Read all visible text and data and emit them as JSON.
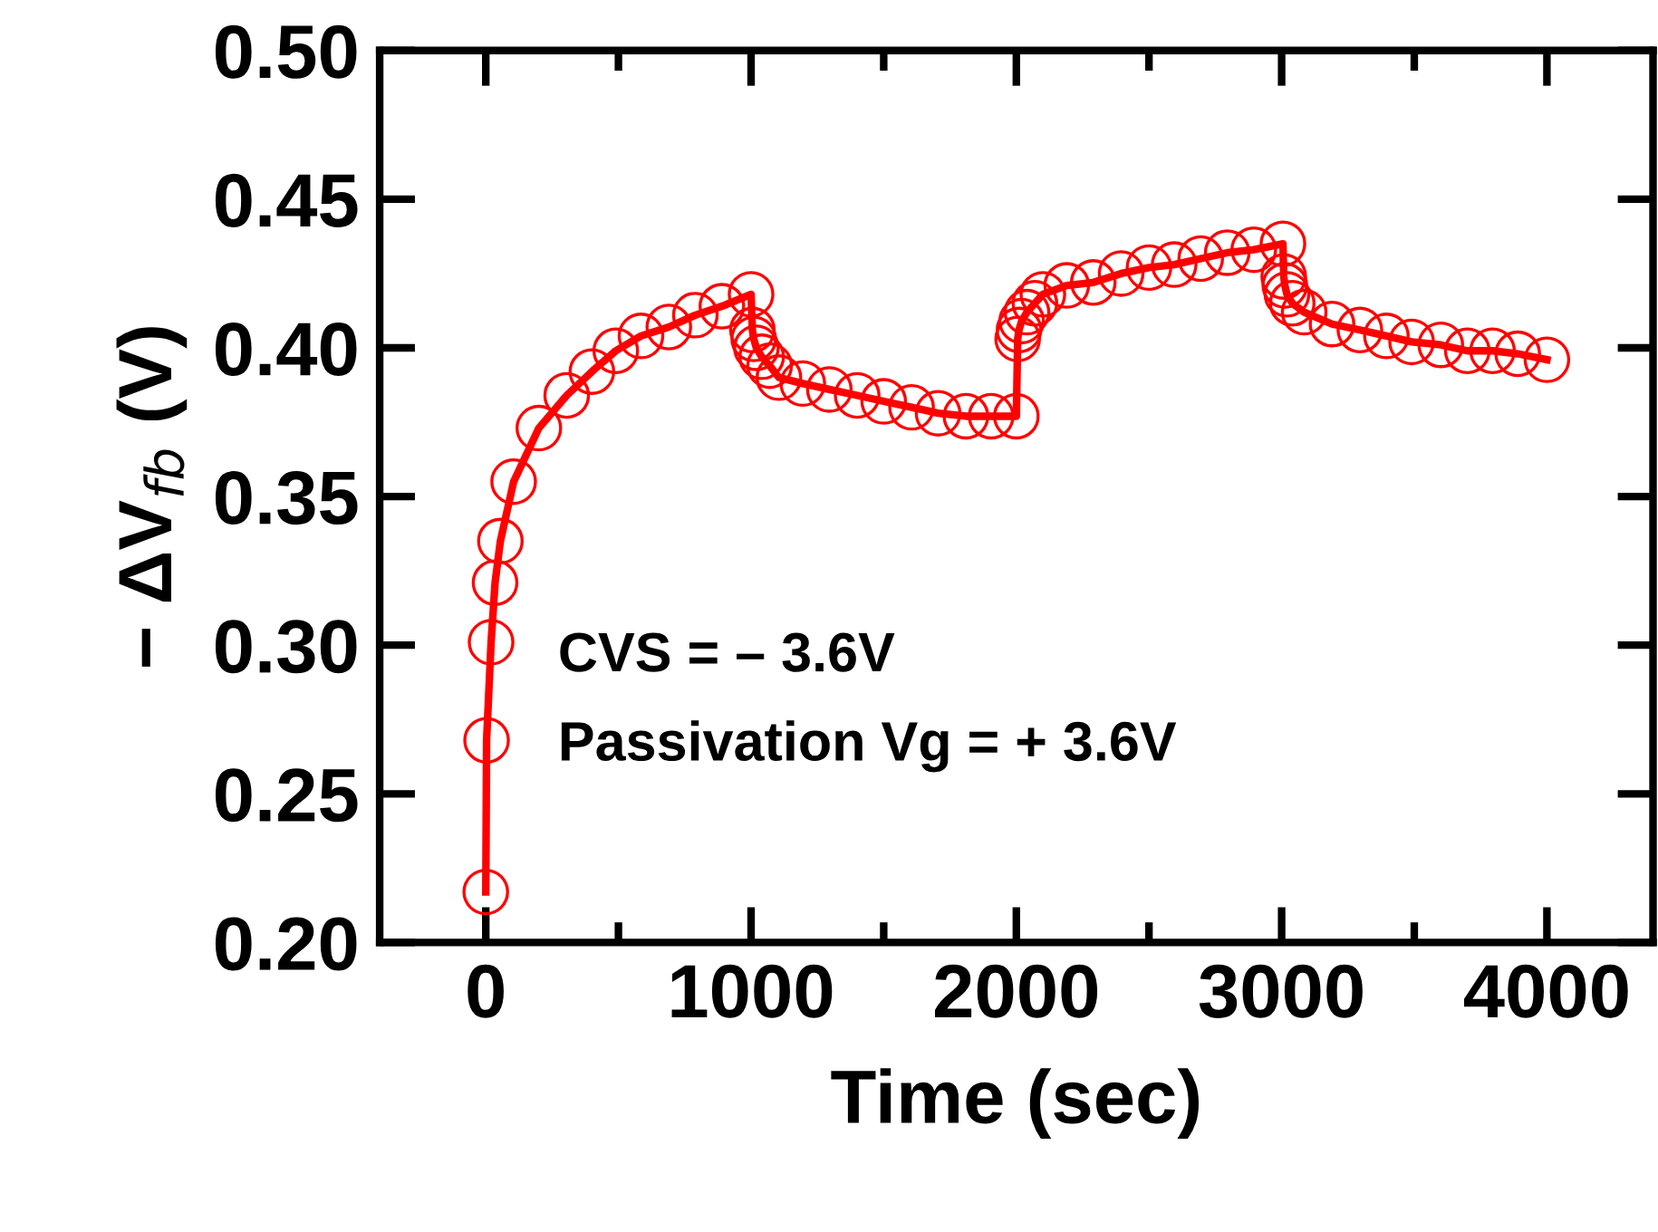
{
  "chart_data": {
    "type": "line",
    "xlabel": "Time (sec)",
    "ylabel": "− ΔV$_{fb}$ (V)",
    "xlim": [
      -400,
      4400
    ],
    "ylim": [
      0.2,
      0.5
    ],
    "xticks": [
      0,
      1000,
      2000,
      3000,
      4000
    ],
    "yticks": [
      {
        "value": 0.2,
        "label": "0.20"
      },
      {
        "value": 0.25,
        "label": "0.25"
      },
      {
        "value": 0.3,
        "label": "0.30"
      },
      {
        "value": 0.35,
        "label": "0.35"
      },
      {
        "value": 0.4,
        "label": "0.40"
      },
      {
        "value": 0.45,
        "label": "0.45"
      },
      {
        "value": 0.5,
        "label": "0.50"
      }
    ],
    "marker": "circle",
    "line_style": "solid",
    "grid": false,
    "legend": false,
    "annotations": [
      "CVS = – 3.6V",
      "Passivation Vg = + 3.6V"
    ],
    "series": [
      {
        "color": "#ff0000",
        "x": [
          0,
          3,
          20,
          35,
          55,
          105,
          200,
          305,
          400,
          490,
          585,
          690,
          790,
          890,
          1000,
          1005,
          1010,
          1020,
          1040,
          1070,
          1105,
          1195,
          1295,
          1400,
          1500,
          1605,
          1705,
          1810,
          1905,
          2000,
          2005,
          2010,
          2020,
          2040,
          2070,
          2100,
          2190,
          2290,
          2395,
          2500,
          2595,
          2695,
          2795,
          2895,
          3005,
          3008,
          3012,
          3020,
          3040,
          3085,
          3190,
          3295,
          3395,
          3490,
          3600,
          3700,
          3795,
          3890,
          4000
        ],
        "values": [
          0.217,
          0.268,
          0.301,
          0.321,
          0.335,
          0.355,
          0.373,
          0.384,
          0.392,
          0.399,
          0.404,
          0.407,
          0.411,
          0.414,
          0.418,
          0.406,
          0.403,
          0.4,
          0.397,
          0.394,
          0.39,
          0.388,
          0.386,
          0.384,
          0.382,
          0.38,
          0.378,
          0.377,
          0.377,
          0.377,
          0.403,
          0.406,
          0.409,
          0.412,
          0.415,
          0.418,
          0.421,
          0.422,
          0.425,
          0.427,
          0.428,
          0.43,
          0.432,
          0.433,
          0.435,
          0.424,
          0.421,
          0.418,
          0.415,
          0.412,
          0.408,
          0.406,
          0.404,
          0.402,
          0.401,
          0.399,
          0.399,
          0.398,
          0.396
        ]
      }
    ]
  }
}
